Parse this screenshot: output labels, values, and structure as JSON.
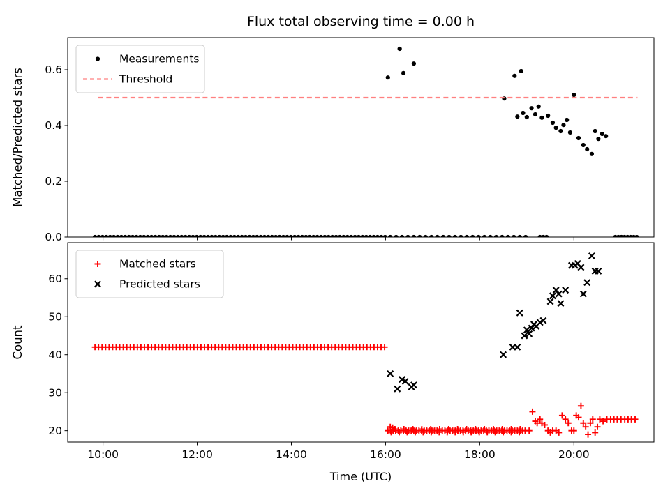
{
  "title": "Flux total observing time = 0.00 h",
  "xlabel": "Time (UTC)",
  "colors": {
    "measurements": "#000000",
    "threshold": "#ff8080",
    "matched": "#ff0000",
    "predicted": "#000000",
    "legend_edge": "#cccccc",
    "axes_edge": "#000000"
  },
  "chart_data": [
    {
      "type": "scatter",
      "ylabel": "Matched/Predicted stars",
      "xlim": [
        9.25,
        21.7
      ],
      "ylim": [
        0,
        0.715
      ],
      "xticks": [
        10,
        12,
        14,
        16,
        18,
        20
      ],
      "xtick_labels": [
        "10:00",
        "12:00",
        "14:00",
        "16:00",
        "18:00",
        "20:00"
      ],
      "show_xtick_labels": false,
      "yticks": [
        0.0,
        0.2,
        0.4,
        0.6
      ],
      "ytick_labels": [
        "0.0",
        "0.2",
        "0.4",
        "0.6"
      ],
      "legend": [
        {
          "label": "Measurements",
          "marker": "dot",
          "color": "#000000"
        },
        {
          "label": "Threshold",
          "marker": "dashed",
          "color": "#ff8080"
        }
      ],
      "series": [
        {
          "name": "Measurements",
          "marker": "dot",
          "color": "#000000",
          "runs": [
            [
              9.83,
              16.0,
              0.08,
              0.0
            ],
            [
              16.1,
              18.98,
              0.125,
              0.0
            ],
            [
              19.28,
              19.42,
              0.07,
              0.0
            ],
            [
              20.88,
              21.35,
              0.065,
              0.0
            ]
          ],
          "points": [
            [
              16.05,
              0.572
            ],
            [
              16.3,
              0.675
            ],
            [
              16.38,
              0.588
            ],
            [
              16.6,
              0.622
            ],
            [
              18.52,
              0.497
            ],
            [
              18.74,
              0.578
            ],
            [
              18.88,
              0.595
            ],
            [
              18.8,
              0.432
            ],
            [
              18.92,
              0.445
            ],
            [
              19.0,
              0.43
            ],
            [
              19.1,
              0.462
            ],
            [
              19.18,
              0.44
            ],
            [
              19.25,
              0.468
            ],
            [
              19.32,
              0.428
            ],
            [
              19.45,
              0.435
            ],
            [
              19.55,
              0.41
            ],
            [
              19.62,
              0.392
            ],
            [
              19.72,
              0.38
            ],
            [
              19.78,
              0.402
            ],
            [
              19.85,
              0.42
            ],
            [
              19.92,
              0.375
            ],
            [
              20.0,
              0.51
            ],
            [
              20.1,
              0.355
            ],
            [
              20.2,
              0.33
            ],
            [
              20.28,
              0.315
            ],
            [
              20.38,
              0.298
            ],
            [
              20.45,
              0.38
            ],
            [
              20.52,
              0.352
            ],
            [
              20.6,
              0.37
            ],
            [
              20.68,
              0.362
            ]
          ]
        },
        {
          "name": "Threshold",
          "marker": "dashed",
          "color": "#ff8080",
          "line": {
            "y": 0.5,
            "x0": 9.9,
            "x1": 21.35
          }
        }
      ]
    },
    {
      "type": "scatter",
      "ylabel": "Count",
      "xlim": [
        9.25,
        21.7
      ],
      "ylim": [
        17,
        69.5
      ],
      "xticks": [
        10,
        12,
        14,
        16,
        18,
        20
      ],
      "xtick_labels": [
        "10:00",
        "12:00",
        "14:00",
        "16:00",
        "18:00",
        "20:00"
      ],
      "show_xtick_labels": true,
      "yticks": [
        20,
        30,
        40,
        50,
        60
      ],
      "ytick_labels": [
        "20",
        "30",
        "40",
        "50",
        "60"
      ],
      "legend": [
        {
          "label": "Matched stars",
          "marker": "plus",
          "color": "#ff0000"
        },
        {
          "label": "Predicted stars",
          "marker": "x",
          "color": "#000000"
        }
      ],
      "series": [
        {
          "name": "Matched stars",
          "marker": "plus",
          "color": "#ff0000",
          "runs": [
            [
              9.83,
              16.0,
              0.075,
              42
            ],
            [
              16.05,
              18.98,
              0.055,
              20
            ],
            [
              16.12,
              18.9,
              0.17,
              19.6
            ],
            [
              16.2,
              18.95,
              0.19,
              20.4
            ]
          ],
          "points": [
            [
              16.1,
              21
            ],
            [
              16.15,
              20.8
            ],
            [
              19.05,
              20
            ],
            [
              19.12,
              25
            ],
            [
              19.18,
              22.5
            ],
            [
              19.22,
              22
            ],
            [
              19.28,
              23
            ],
            [
              19.32,
              22
            ],
            [
              19.38,
              21.5
            ],
            [
              19.45,
              20
            ],
            [
              19.5,
              19.5
            ],
            [
              19.55,
              20
            ],
            [
              19.62,
              20
            ],
            [
              19.68,
              19.5
            ],
            [
              19.75,
              24
            ],
            [
              19.82,
              23
            ],
            [
              19.88,
              22
            ],
            [
              19.95,
              20
            ],
            [
              20.0,
              20
            ],
            [
              20.05,
              24
            ],
            [
              20.1,
              23.5
            ],
            [
              20.15,
              26.5
            ],
            [
              20.2,
              22
            ],
            [
              20.25,
              21
            ],
            [
              20.3,
              19
            ],
            [
              20.35,
              22
            ],
            [
              20.4,
              23
            ],
            [
              20.45,
              19.5
            ],
            [
              20.5,
              21
            ],
            [
              20.55,
              23
            ],
            [
              20.62,
              22.5
            ],
            [
              20.7,
              23
            ],
            [
              20.78,
              23
            ],
            [
              20.85,
              23
            ],
            [
              20.92,
              23
            ],
            [
              21.0,
              23
            ],
            [
              21.08,
              23
            ],
            [
              21.15,
              23
            ],
            [
              21.22,
              23
            ],
            [
              21.3,
              23
            ]
          ]
        },
        {
          "name": "Predicted stars",
          "marker": "x",
          "color": "#000000",
          "points": [
            [
              16.1,
              35
            ],
            [
              16.25,
              31
            ],
            [
              16.35,
              33.5
            ],
            [
              16.42,
              33
            ],
            [
              16.55,
              31.5
            ],
            [
              16.6,
              32
            ],
            [
              18.5,
              40
            ],
            [
              18.7,
              42
            ],
            [
              18.8,
              42
            ],
            [
              18.85,
              51
            ],
            [
              18.95,
              45
            ],
            [
              19.0,
              46.5
            ],
            [
              19.05,
              45.5
            ],
            [
              19.1,
              47
            ],
            [
              19.15,
              48
            ],
            [
              19.2,
              47.5
            ],
            [
              19.28,
              48.5
            ],
            [
              19.35,
              49
            ],
            [
              19.5,
              54
            ],
            [
              19.55,
              55.5
            ],
            [
              19.62,
              57
            ],
            [
              19.68,
              56
            ],
            [
              19.72,
              53.5
            ],
            [
              19.82,
              57
            ],
            [
              19.95,
              63.5
            ],
            [
              20.02,
              63.5
            ],
            [
              20.08,
              64
            ],
            [
              20.15,
              63
            ],
            [
              20.2,
              56
            ],
            [
              20.28,
              59
            ],
            [
              20.38,
              66
            ],
            [
              20.45,
              62
            ],
            [
              20.52,
              62
            ]
          ]
        }
      ]
    }
  ]
}
